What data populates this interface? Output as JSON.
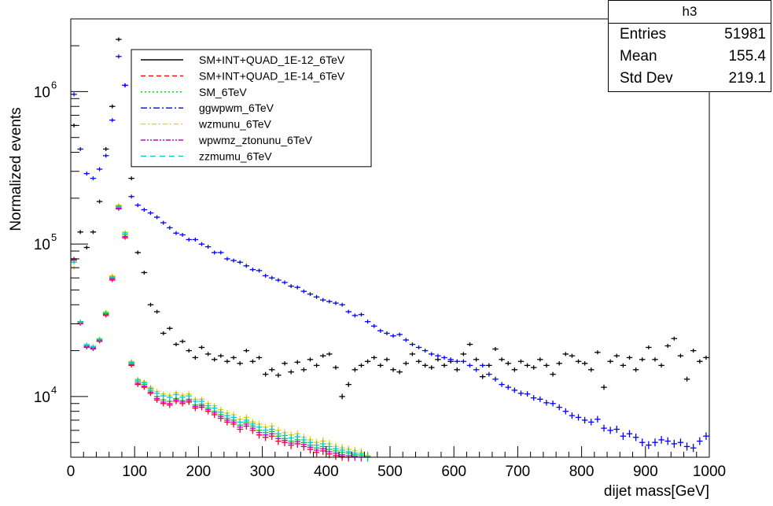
{
  "stats_box": {
    "title": "h3",
    "rows": [
      {
        "label": "Entries",
        "value": "51981"
      },
      {
        "label": "Mean",
        "value": "155.4"
      },
      {
        "label": "Std Dev",
        "value": "219.1"
      }
    ]
  },
  "chart_data": {
    "type": "scatter",
    "title": "",
    "xlabel": "dijet mass[GeV]",
    "ylabel": "Normalized events",
    "xlim": [
      0,
      1000
    ],
    "ylim": [
      4000,
      3000000
    ],
    "y_log_scale": true,
    "grid": false,
    "legend_position": "top-left",
    "x_ticks": [
      0,
      100,
      200,
      300,
      400,
      500,
      600,
      700,
      800,
      900,
      1000
    ],
    "y_ticks": [
      {
        "value": 10000,
        "label": "10",
        "exponent": "4"
      },
      {
        "value": 100000,
        "label": "10",
        "exponent": "5"
      },
      {
        "value": 1000000,
        "label": "10",
        "exponent": "6"
      }
    ],
    "series": [
      {
        "name": "SM+INT+QUAD_1E-12_6TeV",
        "color": "#000000",
        "dash": "",
        "x": [
          5,
          15,
          25,
          35,
          45,
          55,
          65,
          75,
          85,
          95,
          105,
          115,
          125,
          135,
          145,
          155,
          165,
          175,
          185,
          195,
          205,
          215,
          225,
          235,
          245,
          255,
          265,
          275,
          285,
          295,
          305,
          315,
          325,
          335,
          345,
          355,
          365,
          375,
          385,
          395,
          405,
          415,
          425,
          435,
          445,
          455,
          465,
          475,
          485,
          495,
          505,
          515,
          525,
          535,
          545,
          555,
          565,
          575,
          585,
          595,
          605,
          615,
          625,
          635,
          645,
          655,
          665,
          675,
          685,
          695,
          705,
          715,
          725,
          735,
          745,
          755,
          765,
          775,
          785,
          795,
          805,
          815,
          825,
          835,
          845,
          855,
          865,
          875,
          885,
          895,
          905,
          915,
          925,
          935,
          945,
          955,
          965,
          975,
          985,
          995
        ],
        "y": [
          600000,
          120000,
          95000,
          120000,
          190000,
          420000,
          800000,
          2200000,
          1100000,
          270000,
          88000,
          65000,
          40000,
          36000,
          26000,
          28000,
          22000,
          23000,
          20000,
          18000,
          21000,
          19000,
          17500,
          18500,
          17000,
          18000,
          16500,
          20000,
          17000,
          18000,
          14000,
          15000,
          13800,
          16500,
          14500,
          16800,
          15000,
          17500,
          16000,
          18500,
          19000,
          15500,
          10000,
          12000,
          15000,
          16000,
          17000,
          18000,
          16000,
          17500,
          15000,
          14500,
          16500,
          19000,
          17000,
          16000,
          15500,
          17500,
          16000,
          17000,
          15000,
          19000,
          22000,
          17500,
          13500,
          16000,
          20500,
          17500,
          16500,
          15000,
          17000,
          16000,
          15500,
          17500,
          16000,
          14000,
          16500,
          19000,
          18500,
          17000,
          16500,
          15000,
          19500,
          11500,
          17000,
          18500,
          16000,
          18000,
          15000,
          17500,
          21000,
          17500,
          16000,
          21500,
          24000,
          18500,
          13000,
          20000,
          17000,
          18000
        ]
      },
      {
        "name": "SM+INT+QUAD_1E-14_6TeV",
        "color": "#ff0000",
        "dash": "6,4",
        "x": [
          5,
          15,
          25,
          35,
          45,
          55,
          65,
          75,
          85,
          95,
          105,
          115,
          125,
          135,
          145,
          155,
          165,
          175,
          185,
          195,
          205,
          215,
          225,
          235,
          245,
          255,
          265,
          275,
          285,
          295,
          305,
          315,
          325,
          335,
          345,
          355,
          365,
          375,
          385,
          395,
          405,
          415,
          425,
          435,
          445,
          455,
          465
        ],
        "y": [
          80000,
          30000,
          21000,
          20500,
          23000,
          34000,
          58000,
          170000,
          110000,
          16000,
          12000,
          11500,
          10500,
          9500,
          9000,
          8800,
          9300,
          9000,
          9200,
          8400,
          8500,
          8000,
          7600,
          7200,
          6800,
          6600,
          6100,
          6400,
          6000,
          5600,
          5400,
          5500,
          5100,
          5000,
          4800,
          4900,
          4700,
          4500,
          4300,
          4400,
          4200,
          4100,
          4050,
          4000,
          3950,
          3900,
          3850
        ]
      },
      {
        "name": "SM_6TeV",
        "color": "#00cc00",
        "dash": "2,3",
        "x": [
          5,
          15,
          25,
          35,
          45,
          55,
          65,
          75,
          85,
          95,
          105,
          115,
          125,
          135,
          145,
          155,
          165,
          175,
          185,
          195,
          205,
          215,
          225,
          235,
          245,
          255,
          265,
          275,
          285,
          295,
          305,
          315,
          325,
          335,
          345,
          355,
          365,
          375,
          385,
          395,
          405,
          415,
          425,
          435,
          445,
          455,
          465
        ],
        "y": [
          78000,
          31000,
          21500,
          21000,
          23500,
          35000,
          60000,
          175000,
          115000,
          16500,
          12500,
          12000,
          11000,
          10000,
          9500,
          9300,
          9700,
          9400,
          9600,
          8800,
          8900,
          8400,
          8000,
          7600,
          7200,
          7000,
          6500,
          6800,
          6400,
          6000,
          5800,
          5900,
          5500,
          5300,
          5100,
          5200,
          5000,
          4800,
          4600,
          4700,
          4500,
          4400,
          4300,
          4250,
          4150,
          4100,
          4000
        ]
      },
      {
        "name": "ggwpwm_6TeV",
        "color": "#0000ff",
        "dash": "8,3,2,3",
        "x": [
          5,
          15,
          25,
          35,
          45,
          55,
          65,
          75,
          85,
          95,
          105,
          115,
          125,
          135,
          145,
          155,
          165,
          175,
          185,
          195,
          205,
          215,
          225,
          235,
          245,
          255,
          265,
          275,
          285,
          295,
          305,
          315,
          325,
          335,
          345,
          355,
          365,
          375,
          385,
          395,
          405,
          415,
          425,
          435,
          445,
          455,
          465,
          475,
          485,
          495,
          505,
          515,
          525,
          535,
          545,
          555,
          565,
          575,
          585,
          595,
          605,
          615,
          625,
          635,
          645,
          655,
          665,
          675,
          685,
          695,
          705,
          715,
          725,
          735,
          745,
          755,
          765,
          775,
          785,
          795,
          805,
          815,
          825,
          835,
          845,
          855,
          865,
          875,
          885,
          895,
          905,
          915,
          925,
          935,
          945,
          955,
          965,
          975,
          985,
          995
        ],
        "y": [
          960000,
          420000,
          290000,
          270000,
          310000,
          380000,
          650000,
          1700000,
          1100000,
          205000,
          180000,
          168000,
          160000,
          150000,
          138000,
          128000,
          118000,
          115000,
          107000,
          107000,
          100000,
          96000,
          88000,
          88000,
          80000,
          78000,
          76000,
          72000,
          68000,
          67000,
          62000,
          60000,
          58000,
          56000,
          53000,
          52000,
          49000,
          47000,
          45000,
          43000,
          42000,
          41000,
          40000,
          36000,
          34000,
          34500,
          31000,
          29000,
          27000,
          26000,
          25000,
          25500,
          23500,
          22000,
          21000,
          20000,
          19000,
          18500,
          18000,
          17500,
          17000,
          17000,
          16000,
          15000,
          16000,
          14000,
          13000,
          12000,
          11500,
          11000,
          10500,
          10400,
          9800,
          9600,
          9100,
          9000,
          8500,
          8000,
          7500,
          7300,
          7000,
          6800,
          7100,
          6200,
          6000,
          6100,
          5500,
          5700,
          5400,
          5000,
          4800,
          5000,
          5200,
          5100,
          4900,
          5000,
          4700,
          4600,
          5100,
          5500
        ]
      },
      {
        "name": "wzmunu_6TeV",
        "color": "#ffcc00",
        "dash": "6,3,2,3",
        "x": [
          5,
          15,
          25,
          35,
          45,
          55,
          65,
          75,
          85,
          95,
          105,
          115,
          125,
          135,
          145,
          155,
          165,
          175,
          185,
          195,
          205,
          215,
          225,
          235,
          245,
          255,
          265,
          275,
          285,
          295,
          305,
          315,
          325,
          335,
          345,
          355,
          365,
          375,
          385,
          395,
          405,
          415,
          425,
          435,
          445,
          455,
          465
        ],
        "y": [
          70000,
          30500,
          22000,
          21500,
          24000,
          36000,
          62000,
          180000,
          120000,
          17000,
          13000,
          12500,
          11500,
          10800,
          10400,
          10200,
          10600,
          10200,
          10400,
          9600,
          9600,
          9000,
          8700,
          8200,
          7800,
          7600,
          7100,
          7300,
          6800,
          6600,
          6300,
          6400,
          6000,
          5800,
          5600,
          5700,
          5400,
          5200,
          5000,
          5100,
          4900,
          4700,
          4600,
          4500,
          4400,
          4300,
          4100
        ]
      },
      {
        "name": "wpwmz_ztonunu_6TeV",
        "color": "#cc00cc",
        "dash": "6,2,2,2,2,2",
        "x": [
          5,
          15,
          25,
          35,
          45,
          55,
          65,
          75,
          85,
          95,
          105,
          115,
          125,
          135,
          145,
          155,
          165,
          175,
          185,
          195,
          205,
          215,
          225,
          235,
          245,
          255,
          265,
          275,
          285,
          295,
          305,
          315,
          325,
          335,
          345,
          355,
          365,
          375,
          385,
          395,
          405,
          415,
          425,
          435,
          445,
          455,
          465
        ],
        "y": [
          79000,
          30200,
          21200,
          20800,
          23200,
          34500,
          59000,
          172000,
          112000,
          16200,
          12200,
          11700,
          10700,
          9700,
          9200,
          9000,
          9500,
          9200,
          9400,
          8600,
          8700,
          8200,
          7800,
          7400,
          7000,
          6800,
          6300,
          6600,
          6200,
          5800,
          5600,
          5700,
          5300,
          5150,
          4950,
          5050,
          4850,
          4650,
          4450,
          4550,
          4350,
          4250,
          4150,
          4100,
          4050,
          4000,
          3950
        ]
      },
      {
        "name": "zzmumu_6TeV",
        "color": "#00cccc",
        "dash": "7,5",
        "x": [
          5,
          15,
          25,
          35,
          45,
          55,
          65,
          75,
          85,
          95,
          105,
          115,
          125,
          135,
          145,
          155,
          165,
          175,
          185,
          195,
          205,
          215,
          225,
          235,
          245,
          255,
          265,
          275,
          285,
          295,
          305,
          315,
          325,
          335,
          345,
          355,
          365,
          375,
          385,
          395,
          405,
          415,
          425,
          435,
          445,
          455,
          465
        ],
        "y": [
          76000,
          30800,
          21800,
          21200,
          23800,
          35500,
          61000,
          178000,
          118000,
          16800,
          12800,
          12300,
          11300,
          10500,
          10100,
          9900,
          10300,
          9900,
          10100,
          9300,
          9300,
          8700,
          8400,
          7900,
          7500,
          7300,
          6800,
          7000,
          6600,
          6300,
          6000,
          6100,
          5700,
          5550,
          5350,
          5450,
          5200,
          5000,
          4800,
          4900,
          4700,
          4550,
          4450,
          4350,
          4250,
          4200,
          4050
        ]
      }
    ]
  }
}
